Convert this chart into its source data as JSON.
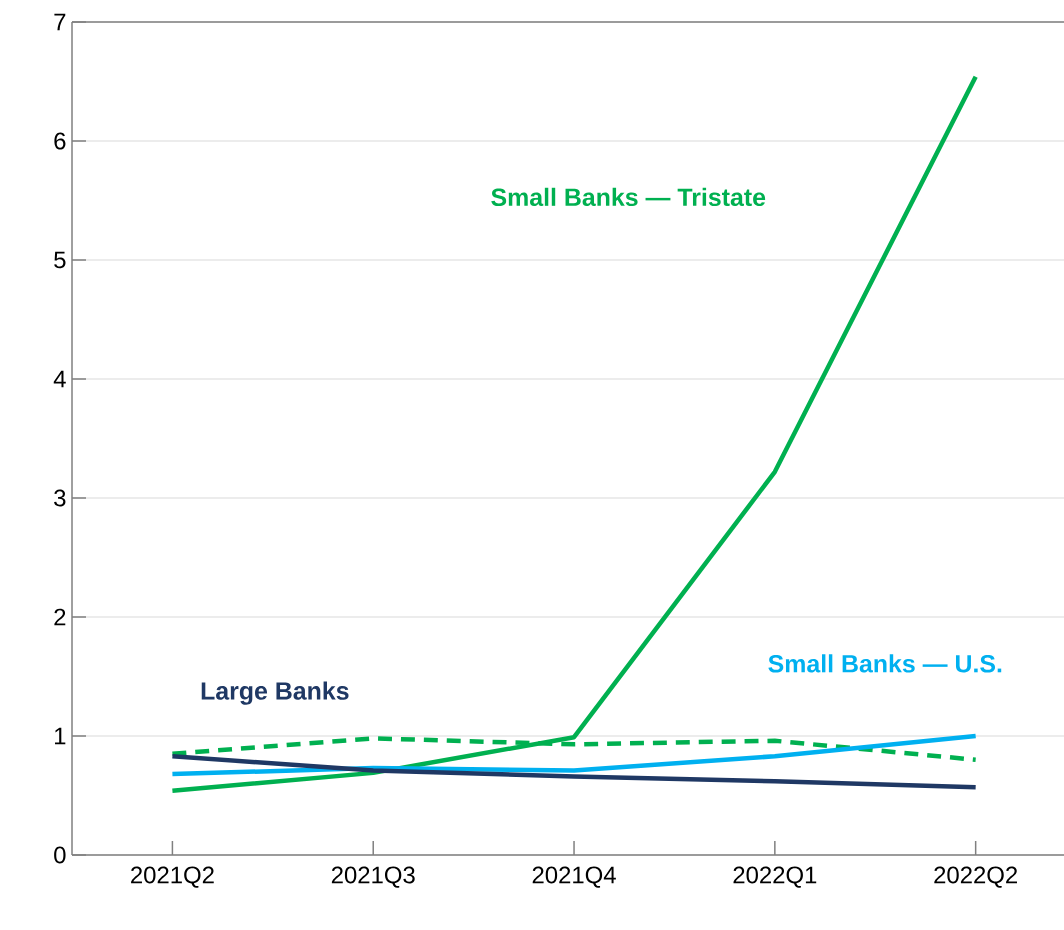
{
  "chart_data": {
    "type": "line",
    "categories": [
      "2021Q2",
      "2021Q3",
      "2021Q4",
      "2022Q1",
      "2022Q2"
    ],
    "series": [
      {
        "name": "Small Banks — Tristate",
        "color": "#00b050",
        "values": [
          0.54,
          0.69,
          0.99,
          3.22,
          6.54
        ]
      },
      {
        "color": "#00b050",
        "line_style": "dashed",
        "values": [
          0.85,
          0.98,
          0.93,
          0.96,
          0.8
        ]
      },
      {
        "name": "Small Banks — U.S.",
        "color": "#00b0f0",
        "values": [
          0.68,
          0.73,
          0.71,
          0.83,
          1.0
        ]
      },
      {
        "name": "Large Banks",
        "color": "#1f3864",
        "values": [
          0.83,
          0.71,
          0.66,
          0.62,
          0.57
        ]
      }
    ],
    "ylim": [
      0,
      7
    ],
    "yticks": [
      0,
      1,
      2,
      3,
      4,
      5,
      6,
      7
    ],
    "grid": "y",
    "legend": false,
    "marker": "none",
    "line_style": "solid"
  }
}
